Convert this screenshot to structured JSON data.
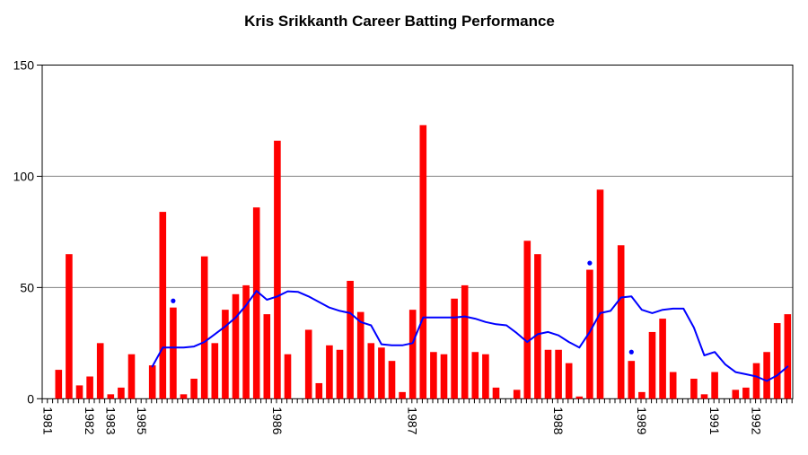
{
  "title": "Kris Srikkanth Career Batting Performance",
  "colors": {
    "bar": "#ff0000",
    "line": "#0000ff",
    "dot": "#0000ff",
    "grid": "#808080",
    "axis": "#000000",
    "text": "#000000",
    "background": "#ffffff"
  },
  "chart_data": {
    "type": "bar",
    "subtype": "column-with-line-overlay",
    "title": "Kris Srikkanth Career Batting Performance",
    "xlabel": "",
    "ylabel": "",
    "ylim": [
      0,
      150
    ],
    "y_ticks": [
      0,
      50,
      100,
      150
    ],
    "grid": true,
    "legend": false,
    "x_year_labels": [
      {
        "index": 0,
        "label": "1981"
      },
      {
        "index": 4,
        "label": "1982"
      },
      {
        "index": 6,
        "label": "1983"
      },
      {
        "index": 9,
        "label": "1985"
      },
      {
        "index": 22,
        "label": "1986"
      },
      {
        "index": 35,
        "label": "1987"
      },
      {
        "index": 49,
        "label": "1988"
      },
      {
        "index": 57,
        "label": "1989"
      },
      {
        "index": 64,
        "label": "1991"
      },
      {
        "index": 68,
        "label": "1992"
      }
    ],
    "series": [
      {
        "name": "innings_score",
        "type": "bar",
        "color": "#ff0000",
        "values": [
          0,
          13,
          65,
          6,
          10,
          25,
          2,
          5,
          20,
          0,
          15,
          84,
          41,
          2,
          9,
          64,
          25,
          40,
          47,
          51,
          86,
          38,
          116,
          20,
          0,
          31,
          7,
          24,
          22,
          53,
          39,
          25,
          23,
          17,
          3,
          40,
          123,
          21,
          20,
          45,
          51,
          21,
          20,
          5,
          0,
          4,
          71,
          65,
          22,
          22,
          16,
          1,
          58,
          94,
          0,
          69,
          17,
          3,
          30,
          36,
          12,
          0,
          9,
          2,
          12,
          0,
          4,
          5,
          16,
          21,
          34,
          38
        ]
      },
      {
        "name": "moving_average",
        "type": "line",
        "color": "#0000ff",
        "values": [
          null,
          null,
          null,
          null,
          null,
          null,
          null,
          null,
          null,
          null,
          14.5,
          23,
          23,
          23,
          23.5,
          25.5,
          29,
          32.5,
          36.5,
          42,
          48.5,
          44.5,
          46,
          48.3,
          48,
          46,
          43.5,
          41,
          39.5,
          38.5,
          34.5,
          33,
          24.5,
          24,
          24,
          25,
          36.5,
          36.5,
          36.5,
          36.5,
          37,
          36,
          34.5,
          33.5,
          33,
          29.5,
          25.5,
          29,
          30,
          28.5,
          25.5,
          23,
          30,
          38.5,
          39.5,
          45.5,
          46,
          40,
          38.5,
          40,
          40.5,
          40.5,
          32,
          19.5,
          21,
          15.5,
          12,
          11,
          10,
          8,
          10.5,
          14.5
        ]
      },
      {
        "name": "marked_points",
        "type": "scatter",
        "color": "#0000ff",
        "points": [
          {
            "index": 12,
            "value": 44
          },
          {
            "index": 52,
            "value": 61
          },
          {
            "index": 56,
            "value": 21
          }
        ]
      }
    ]
  }
}
